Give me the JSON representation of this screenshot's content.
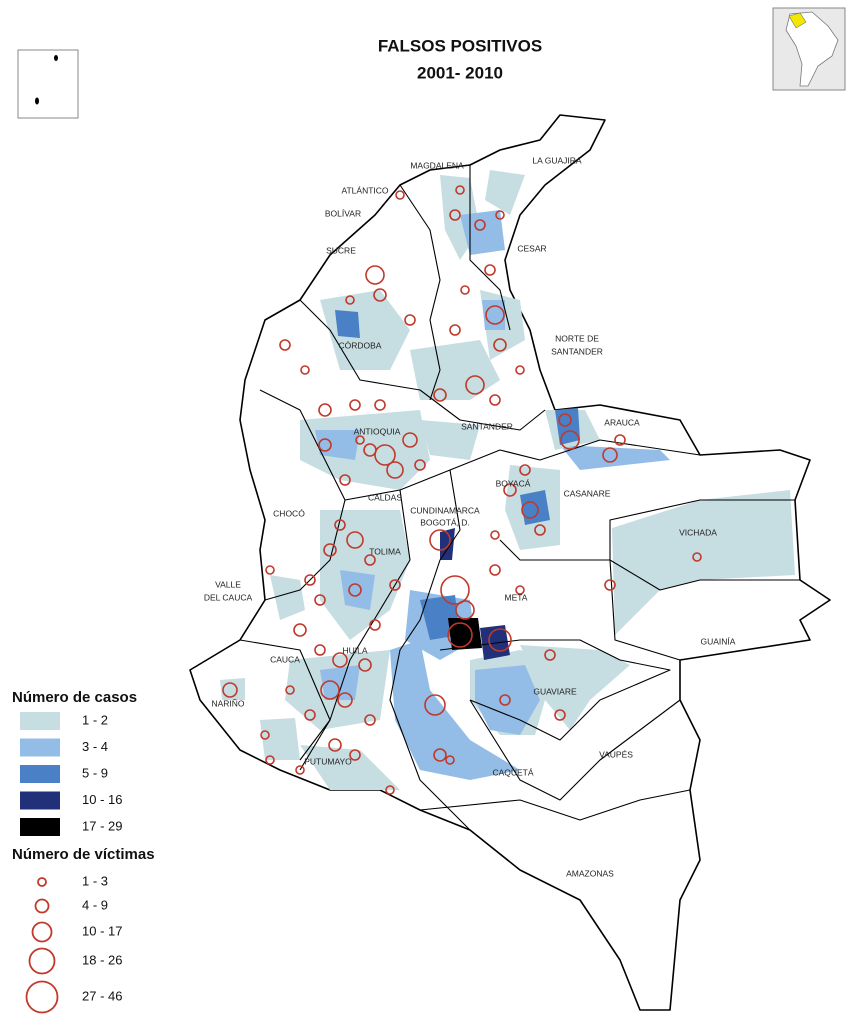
{
  "header": {
    "title": "FALSOS POSITIVOS",
    "subtitle": "2001- 2010"
  },
  "departments": [
    "MAGDALENA",
    "LA GUAJIRA",
    "ATLÁNTICO",
    "BOLÍVAR",
    "CESAR",
    "SUCRE",
    "NORTE DE",
    "SANTANDER",
    "CÓRDOBA",
    "ANTIOQUIA",
    "SANTANDER",
    "ARAUCA",
    "BOYACÁ",
    "CASANARE",
    "CALDAS",
    "CUNDINAMARCA",
    "BOGOTÁ, D.",
    "CHOCÓ",
    "TOLIMA",
    "VICHADA",
    "VALLE",
    "DEL CAUCA",
    "META",
    "GUAINÍA",
    "CAUCA",
    "HUILA",
    "NARIÑO",
    "GUAVIARE",
    "VAUPÉS",
    "PUTUMAYO",
    "CAQUETÁ",
    "AMAZONAS"
  ],
  "legend_cases": {
    "title": "Número de casos",
    "items": [
      {
        "label": "1 - 2",
        "color": "#c6dde2"
      },
      {
        "label": "3 - 4",
        "color": "#93bde6"
      },
      {
        "label": "5 - 9",
        "color": "#4a80c6"
      },
      {
        "label": "10 - 16",
        "color": "#22307a"
      },
      {
        "label": "17 - 29",
        "color": "#000000"
      }
    ]
  },
  "legend_victims": {
    "title": "Número de víctimas",
    "color": "#c0392b",
    "items": [
      "1 - 3",
      "4 - 9",
      "10 - 17",
      "18 - 26",
      "27 - 46"
    ]
  }
}
